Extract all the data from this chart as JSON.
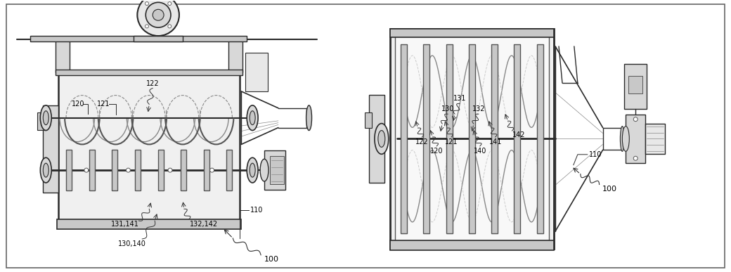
{
  "bg_color": "#ffffff",
  "lc": "#2a2a2a",
  "lc_med": "#555555",
  "lc_light": "#888888",
  "lc_vlight": "#aaaaaa",
  "fc_box": "#f0f0f0",
  "fc_dark": "#c8c8c8",
  "fc_mid": "#d8d8d8",
  "fc_light": "#e8e8e8",
  "font_size": 7.0,
  "font_size_big": 8.0,
  "fig_width": 10.4,
  "fig_height": 3.87
}
